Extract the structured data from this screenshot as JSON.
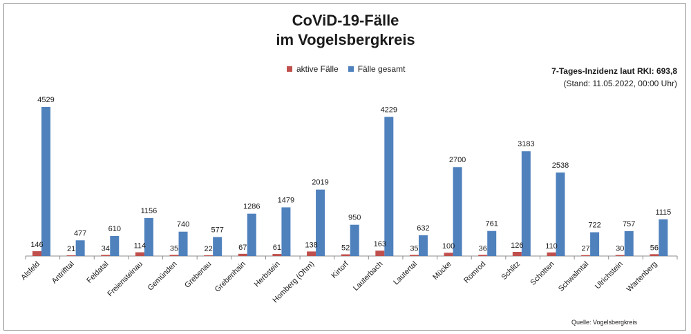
{
  "title_line1": "CoViD-19-Fälle",
  "title_line2": "im Vogelsbergkreis",
  "rki_line1": "7-Tages-Inzidenz laut RKI: 693,8",
  "rki_line2": "(Stand: 11.05.2022, 00:00 Uhr)",
  "source": "Quelle: Vogelsbergkreis",
  "chart_data": {
    "type": "bar",
    "categories": [
      "Alsfeld",
      "Antrifttal",
      "Feldatal",
      "Freiensteinau",
      "Gemünden",
      "Grebenau",
      "Grebenhain",
      "Herbstein",
      "Homberg (Ohm)",
      "Kirtorf",
      "Lauterbach",
      "Lautertal",
      "Mücke",
      "Romrod",
      "Schlitz",
      "Schotten",
      "Schwalmtal",
      "Ulrichstein",
      "Wartenberg"
    ],
    "series": [
      {
        "name": "aktive Fälle",
        "color": "#c0504d",
        "values": [
          146,
          21,
          34,
          114,
          35,
          22,
          67,
          61,
          138,
          52,
          163,
          35,
          100,
          36,
          126,
          110,
          27,
          30,
          56
        ]
      },
      {
        "name": "Fälle gesamt",
        "color": "#4f81bd",
        "values": [
          4529,
          477,
          610,
          1156,
          740,
          577,
          1286,
          1479,
          2019,
          950,
          4229,
          632,
          2700,
          761,
          3183,
          2538,
          722,
          757,
          1115
        ]
      }
    ],
    "ylim": [
      0,
      4600
    ],
    "grid": false,
    "legend": "top"
  }
}
